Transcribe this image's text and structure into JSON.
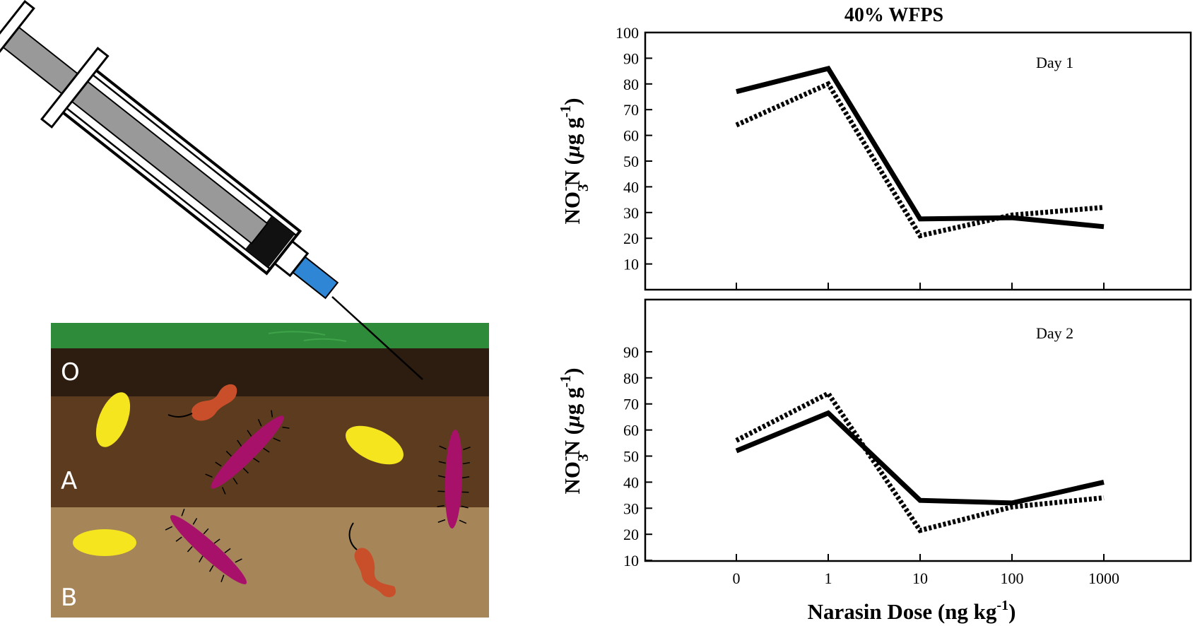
{
  "illustration": {
    "layers": [
      {
        "label": "O",
        "color": "#2d1c10"
      },
      {
        "label": "A",
        "color": "#5c3b1e"
      },
      {
        "label": "B",
        "color": "#a68559"
      }
    ],
    "grass_color": "#2e8b3a",
    "organisms": {
      "yeast_color": "#f5e51f",
      "worm_color": "#c94f2a",
      "bacteria_color": "#a8116a"
    },
    "syringe": {
      "barrel_color": "#999999",
      "hub_color": "#2f86d4",
      "plunger_color": "#111111"
    }
  },
  "chart_data": {
    "type": "line",
    "title": "40% WFPS",
    "xlabel": "Narasin Dose (ng kg⁻¹)",
    "xlabel_main": "Narasin Dose (ng kg",
    "xlabel_sup": "-1",
    "xlabel_end": ")",
    "categories": [
      "0",
      "1",
      "10",
      "100",
      "1000"
    ],
    "panels": [
      {
        "annotation": "Day 1",
        "ylabel": "NO3-N (µg g⁻¹)",
        "ylim": [
          0,
          100
        ],
        "yticks": [
          10,
          20,
          30,
          40,
          50,
          60,
          70,
          80,
          90,
          100
        ],
        "series": [
          {
            "style": "solid",
            "values": [
              77,
              86,
              27.5,
              28,
              24.5
            ]
          },
          {
            "style": "dotted",
            "values": [
              64,
              80,
              21,
              29,
              32
            ]
          }
        ]
      },
      {
        "annotation": "Day 2",
        "ylabel": "NO3-N (µg g⁻¹)",
        "ylim": [
          0,
          100
        ],
        "yticks": [
          10,
          20,
          30,
          40,
          50,
          60,
          70,
          80,
          90
        ],
        "series": [
          {
            "style": "solid",
            "values": [
              52,
              66.5,
              33,
              32,
              40
            ]
          },
          {
            "style": "dotted",
            "values": [
              56,
              74,
              21.5,
              30.5,
              34
            ]
          }
        ]
      }
    ],
    "ylabel_parts": {
      "a": "NO",
      "sub": "3",
      "sup": "-",
      "b": "N (",
      "mu": "µ",
      "c": "g g",
      "sup2": "-1",
      "d": ")"
    }
  }
}
